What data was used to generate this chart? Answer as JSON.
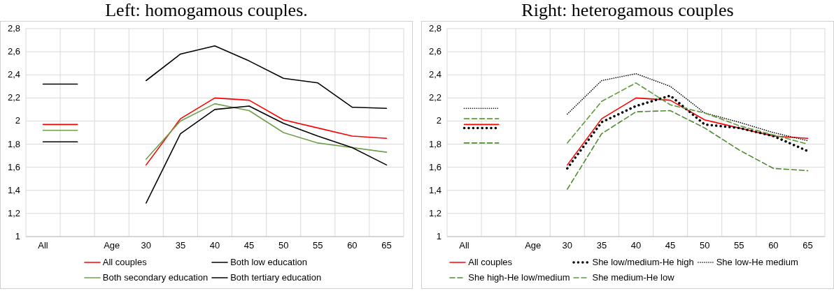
{
  "chart_data": [
    {
      "type": "line",
      "title": "Left: homogamous couples.",
      "categories": [
        "All",
        null,
        "Age",
        "30",
        "35",
        "40",
        "45",
        "50",
        "55",
        "60",
        "65"
      ],
      "series": [
        {
          "name": "All couples",
          "color": "#ff0000",
          "line_style": "solid",
          "values": [
            1.97,
            1.97,
            null,
            1.62,
            2.02,
            2.2,
            2.18,
            2.01,
            1.94,
            1.87,
            1.85
          ]
        },
        {
          "name": "Both low education",
          "color": "#000000",
          "line_style": "solid",
          "values": [
            2.32,
            2.32,
            null,
            2.35,
            2.58,
            2.65,
            2.52,
            2.37,
            2.33,
            2.12,
            2.11
          ]
        },
        {
          "name": "Both secondary education",
          "color": "#70a04c",
          "line_style": "solid",
          "values": [
            1.92,
            1.92,
            null,
            1.67,
            2.0,
            2.15,
            2.09,
            1.9,
            1.81,
            1.77,
            1.73
          ]
        },
        {
          "name": "Both tertiary education",
          "color": "#000000",
          "line_style": "solid",
          "values": [
            1.82,
            1.82,
            null,
            1.29,
            1.89,
            2.1,
            2.13,
            1.98,
            1.87,
            1.77,
            1.62
          ]
        }
      ],
      "ylim": [
        1,
        2.8
      ],
      "yticks": [
        {
          "value": 1,
          "label": "1"
        },
        {
          "value": 1.2,
          "label": "1,2"
        },
        {
          "value": 1.4,
          "label": "1,4"
        },
        {
          "value": 1.6,
          "label": "1,6"
        },
        {
          "value": 1.8,
          "label": "1,8"
        },
        {
          "value": 2,
          "label": "2"
        },
        {
          "value": 2.2,
          "label": "2,2"
        },
        {
          "value": 2.4,
          "label": "2,4"
        },
        {
          "value": 2.6,
          "label": "2,6"
        },
        {
          "value": 2.8,
          "label": "2,8"
        }
      ],
      "grid": true,
      "legend": "bottom"
    },
    {
      "type": "line",
      "title": "Right: heterogamous couples",
      "categories": [
        "All",
        null,
        "Age",
        "30",
        "35",
        "40",
        "45",
        "50",
        "55",
        "60",
        "65"
      ],
      "series": [
        {
          "name": "All couples",
          "color": "#ff0000",
          "line_style": "solid",
          "values": [
            1.97,
            1.97,
            null,
            1.62,
            2.02,
            2.2,
            2.18,
            2.01,
            1.94,
            1.87,
            1.85
          ]
        },
        {
          "name": "She low/medium-He high",
          "color": "#000000",
          "line_style": "dotted",
          "values": [
            1.94,
            1.94,
            null,
            1.59,
            1.99,
            2.13,
            2.22,
            1.97,
            1.94,
            1.87,
            1.74
          ]
        },
        {
          "name": "She low-He medium",
          "color": "#000000",
          "line_style": "dotted",
          "values": [
            2.11,
            2.11,
            null,
            2.06,
            2.35,
            2.41,
            2.3,
            2.07,
            1.99,
            1.9,
            1.83
          ]
        },
        {
          "name": "She high-He low/medium",
          "color": "#4e8a2e",
          "line_style": "dashed",
          "values": [
            1.81,
            1.81,
            null,
            1.41,
            1.89,
            2.08,
            2.09,
            1.94,
            1.75,
            1.59,
            1.57
          ]
        },
        {
          "name": "She medium-He low",
          "color": "#5f9a3a",
          "line_style": "dashed",
          "values": [
            2.02,
            2.02,
            null,
            1.81,
            2.17,
            2.33,
            2.14,
            2.07,
            1.96,
            1.88,
            1.8
          ]
        }
      ],
      "ylim": [
        1,
        2.8
      ],
      "yticks": [
        {
          "value": 1,
          "label": "1"
        },
        {
          "value": 1.2,
          "label": "1,2"
        },
        {
          "value": 1.4,
          "label": "1,4"
        },
        {
          "value": 1.6,
          "label": "1,6"
        },
        {
          "value": 1.8,
          "label": "1,8"
        },
        {
          "value": 2,
          "label": "2"
        },
        {
          "value": 2.2,
          "label": "2,2"
        },
        {
          "value": 2.4,
          "label": "2,4"
        },
        {
          "value": 2.6,
          "label": "2,6"
        },
        {
          "value": 2.8,
          "label": "2,8"
        }
      ],
      "grid": true,
      "legend": "bottom"
    }
  ]
}
